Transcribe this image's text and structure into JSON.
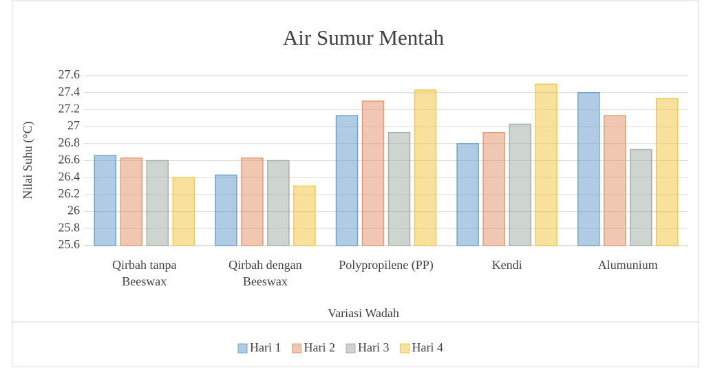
{
  "chart_data": {
    "type": "bar",
    "title": "Air Sumur Mentah",
    "xlabel": "Variasi Wadah",
    "ylabel": "Nilai Suhu (°C)",
    "categories": [
      "Qirbah tanpa Beeswax",
      "Qirbah dengan Beeswax",
      "Polypropilene (PP)",
      "Kendi",
      "Alumunium"
    ],
    "series": [
      {
        "name": "Hari 1",
        "color": "#6fa3cf",
        "values": [
          26.66,
          26.43,
          27.13,
          26.8,
          27.4
        ]
      },
      {
        "name": "Hari 2",
        "color": "#e49a72",
        "values": [
          26.63,
          26.63,
          27.3,
          26.93,
          27.13
        ]
      },
      {
        "name": "Hari 3",
        "color": "#a6b0aa",
        "values": [
          26.6,
          26.6,
          26.93,
          27.03,
          26.73
        ]
      },
      {
        "name": "Hari 4",
        "color": "#f2c94c",
        "values": [
          26.4,
          26.3,
          27.43,
          27.5,
          27.33
        ]
      }
    ],
    "ylim": [
      25.6,
      27.6
    ],
    "yticks": [
      25.6,
      25.8,
      26,
      26.2,
      26.4,
      26.6,
      26.8,
      27,
      27.2,
      27.4,
      27.6
    ],
    "grid": true,
    "legend": "bottom"
  }
}
